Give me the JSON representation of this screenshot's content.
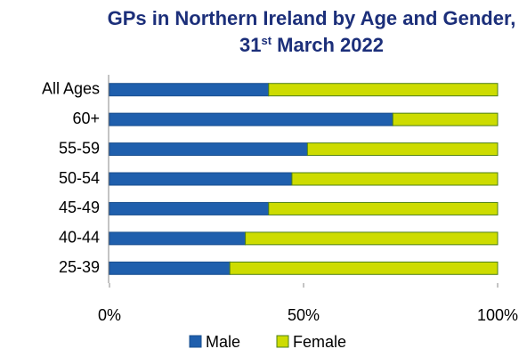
{
  "chart_data": {
    "type": "stacked-bar-horizontal",
    "title": "GPs in Northern Ireland by Age and Gender, 31st March 2022",
    "categories": [
      "All Ages",
      "60+",
      "55-59",
      "50-54",
      "45-49",
      "40-44",
      "25-39"
    ],
    "series": [
      {
        "name": "Male",
        "color": "#1f5fad",
        "values": [
          41,
          73,
          51,
          47,
          41,
          35,
          31
        ]
      },
      {
        "name": "Female",
        "color": "#cddc00",
        "values": [
          59,
          27,
          49,
          53,
          59,
          65,
          69
        ]
      }
    ],
    "xlim": [
      0,
      100
    ],
    "xticks": [
      {
        "value": 0,
        "label": "0%"
      },
      {
        "value": 50,
        "label": "50%"
      },
      {
        "value": 100,
        "label": "100%"
      }
    ],
    "legend": "bottom"
  }
}
